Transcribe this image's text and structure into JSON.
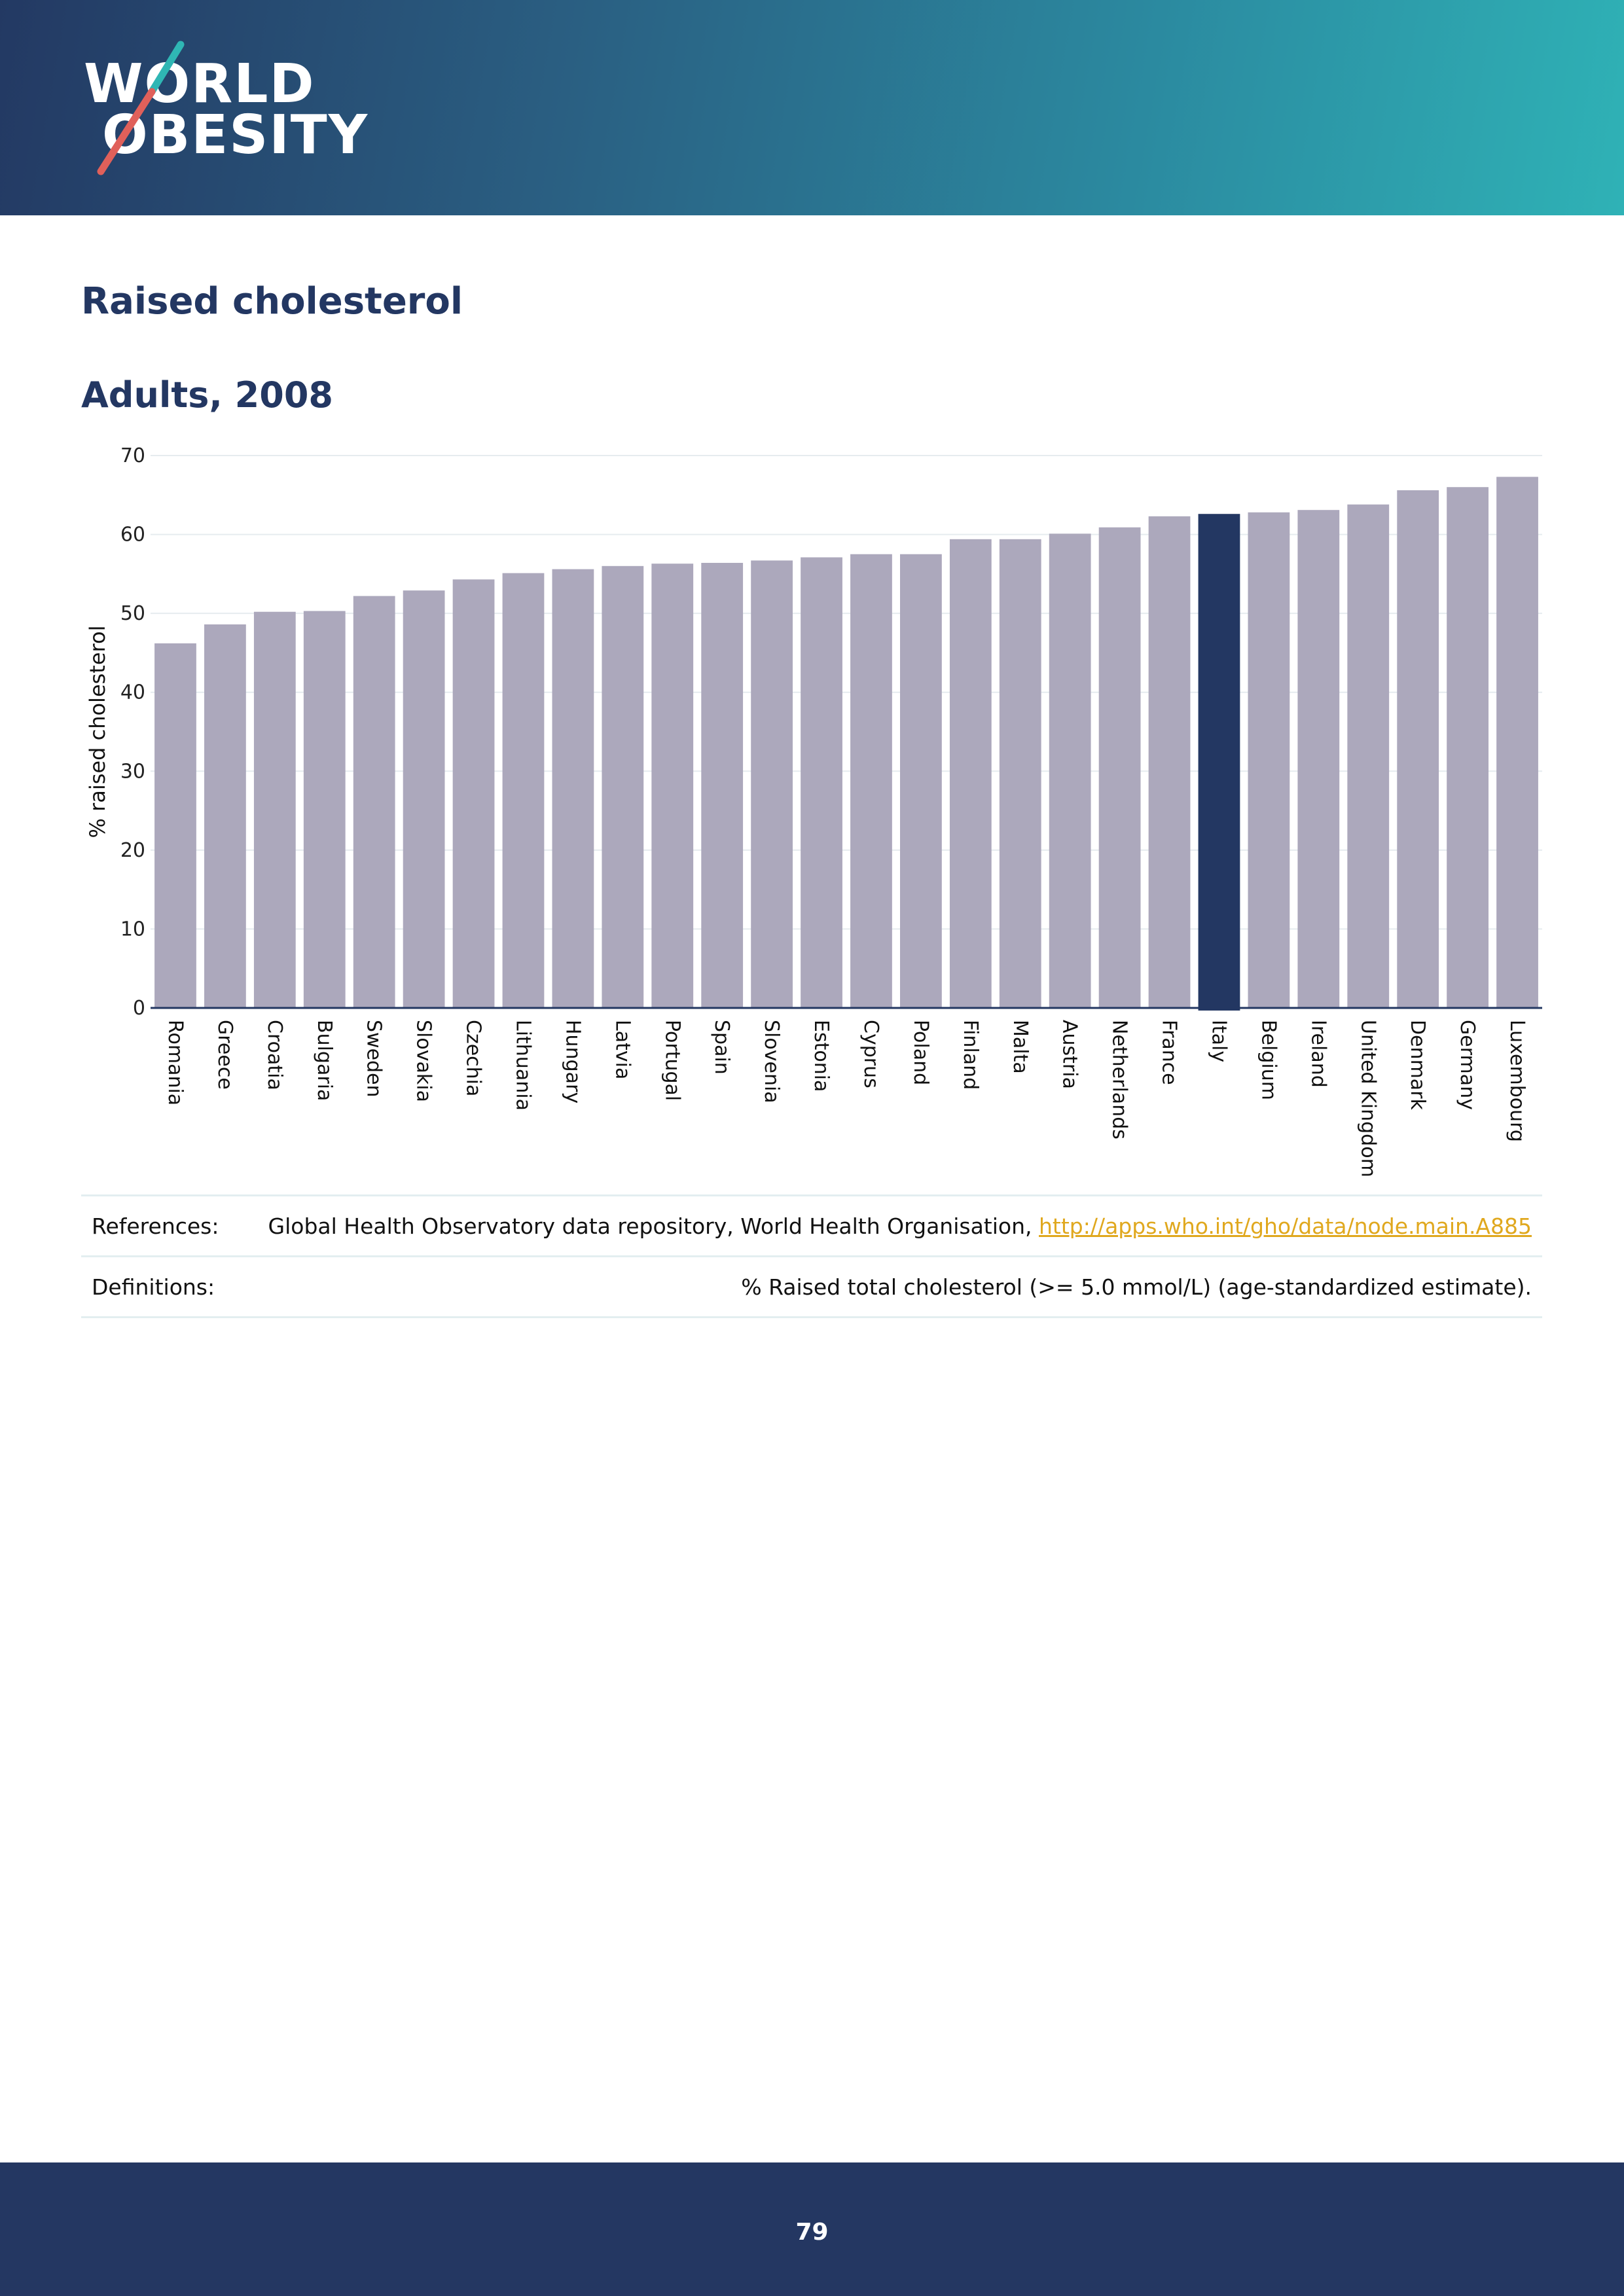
{
  "brand": {
    "logo_line1": "WORLD",
    "logo_line2": "OBESITY",
    "logo_text": "WORLD OBESITY",
    "header_color_start": "#233963",
    "header_color_end": "#2fb2b6",
    "slash_colors": [
      "#2fb6b4",
      "#e0605a"
    ]
  },
  "page": {
    "title": "Raised cholesterol",
    "subtitle": "Adults, 2008",
    "page_number": "79"
  },
  "chart_data": {
    "type": "bar",
    "title": "Adults, 2008",
    "xlabel": "",
    "ylabel": "% raised cholesterol",
    "ylim": [
      0,
      70
    ],
    "yticks": [
      0,
      10,
      20,
      30,
      40,
      50,
      60,
      70
    ],
    "grid": true,
    "categories": [
      "Romania",
      "Greece",
      "Croatia",
      "Bulgaria",
      "Sweden",
      "Slovakia",
      "Czechia",
      "Lithuania",
      "Hungary",
      "Latvia",
      "Portugal",
      "Spain",
      "Slovenia",
      "Estonia",
      "Cyprus",
      "Poland",
      "Finland",
      "Malta",
      "Austria",
      "Netherlands",
      "France",
      "Italy",
      "Belgium",
      "Ireland",
      "United Kingdom",
      "Denmark",
      "Germany",
      "Luxembourg"
    ],
    "values": [
      46.2,
      48.6,
      50.2,
      50.3,
      52.2,
      52.9,
      54.3,
      55.1,
      55.6,
      56.0,
      56.3,
      56.4,
      56.7,
      57.1,
      57.5,
      57.5,
      59.4,
      59.4,
      60.1,
      60.9,
      62.3,
      62.6,
      62.8,
      63.1,
      63.8,
      65.6,
      66.0,
      67.3
    ],
    "highlight": "Italy",
    "bar_color": "#aca8bc",
    "highlight_color": "#233762"
  },
  "table": {
    "references_label": "References:",
    "references_text": "Global Health Observatory data repository, World Health Organisation, ",
    "references_link": "http://apps.who.int/gho/data/node.main.A885",
    "definitions_label": "Definitions:",
    "definitions_text": "% Raised total cholesterol (>= 5.0 mmol/L) (age-standardized estimate)."
  }
}
